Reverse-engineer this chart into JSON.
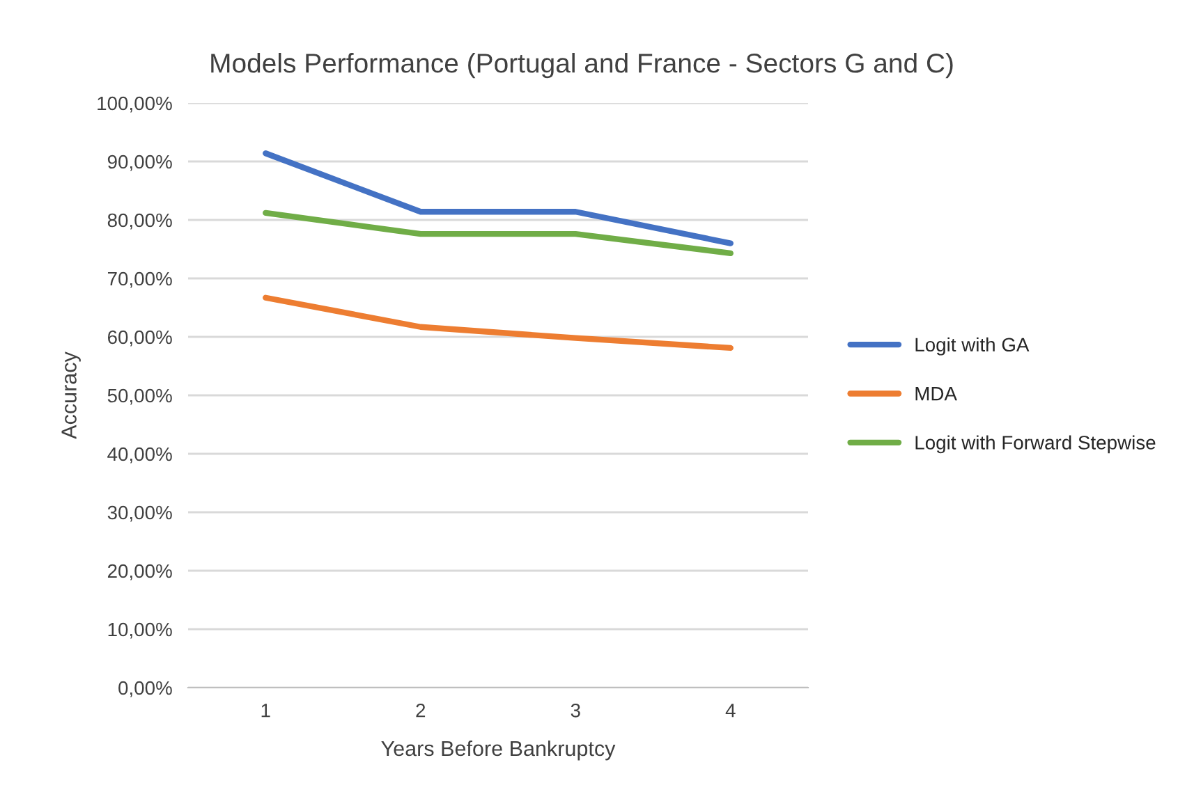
{
  "chart_data": {
    "type": "line",
    "title": "Models Performance (Portugal and France - Sectors G and C)",
    "xlabel": "Years Before Bankruptcy",
    "ylabel": "Accuracy",
    "categories": [
      "1",
      "2",
      "3",
      "4"
    ],
    "series": [
      {
        "name": "Logit with GA",
        "color": "#4472c4",
        "values": [
          91.4,
          81.4,
          81.4,
          76.0
        ]
      },
      {
        "name": "MDA",
        "color": "#ed7d31",
        "values": [
          66.7,
          61.7,
          59.8,
          58.1
        ]
      },
      {
        "name": "Logit with Forward Stepwise",
        "color": "#70ad47",
        "values": [
          81.2,
          77.6,
          77.6,
          74.3
        ]
      }
    ],
    "ylim": [
      0,
      100
    ],
    "yticks": [
      {
        "value": 0,
        "label": "0,00%"
      },
      {
        "value": 10,
        "label": "10,00%"
      },
      {
        "value": 20,
        "label": "20,00%"
      },
      {
        "value": 30,
        "label": "30,00%"
      },
      {
        "value": 40,
        "label": "40,00%"
      },
      {
        "value": 50,
        "label": "50,00%"
      },
      {
        "value": 60,
        "label": "60,00%"
      },
      {
        "value": 70,
        "label": "70,00%"
      },
      {
        "value": 80,
        "label": "80,00%"
      },
      {
        "value": 90,
        "label": "90,00%"
      },
      {
        "value": 100,
        "label": "100,00%"
      }
    ],
    "grid": "y",
    "legend": "right",
    "marker": "none",
    "line_style": "solid"
  }
}
